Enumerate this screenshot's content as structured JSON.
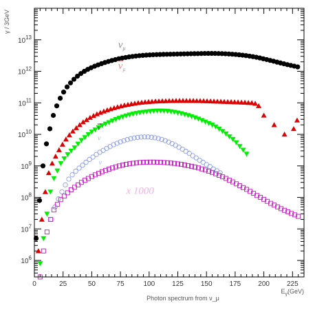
{
  "chart_data": {
    "type": "scatter",
    "title": "",
    "xlabel": "Photon spectrum from ν_μ",
    "xlabel_right": "E_γ(GeV)",
    "ylabel": "γ / 3GeV",
    "xlim": [
      0,
      235
    ],
    "ylim": [
      300000,
      100000000000000
    ],
    "log_y": true,
    "grid": false,
    "x_ticks": [
      0,
      25,
      50,
      75,
      100,
      125,
      150,
      175,
      200,
      225
    ],
    "x_tick_labels": [
      "0",
      "25",
      "50",
      "75",
      "100",
      "125",
      "150",
      "175",
      "200",
      "225"
    ],
    "y_ticks": [
      1000000,
      10000000,
      100000000,
      1000000000,
      10000000000,
      100000000000,
      1000000000000,
      10000000000000
    ],
    "y_tick_labels": [
      {
        "base": "10",
        "exp": "6"
      },
      {
        "base": "10",
        "exp": "7"
      },
      {
        "base": "10",
        "exp": "8"
      },
      {
        "base": "10",
        "exp": "9"
      },
      {
        "base": "10",
        "exp": "10"
      },
      {
        "base": "10",
        "exp": "11"
      },
      {
        "base": "10",
        "exp": "12"
      },
      {
        "base": "10",
        "exp": "13"
      }
    ],
    "annotations": [
      {
        "text": "ν",
        "sub": "μ",
        "x": 73,
        "y": 5500000000000,
        "color": "#888888",
        "size": 15
      },
      {
        "text": "ν",
        "sub": "μ",
        "x": 73,
        "y": 1200000000000,
        "color": "#ee8888",
        "size": 15,
        "overline": true
      },
      {
        "text": "ν",
        "sub": "",
        "x": 55,
        "y": 14000000000,
        "color": "#333333",
        "size": 11,
        "overline": true
      },
      {
        "text": "ν",
        "sub": "",
        "x": 55,
        "y": 6500000000,
        "color": "#aabbee",
        "size": 11
      },
      {
        "text": "ν",
        "sub": "",
        "x": 56,
        "y": 1100000000,
        "color": "#aabbee",
        "size": 11
      },
      {
        "text": "x 1000",
        "sub": "",
        "x": 80,
        "y": 130000000,
        "color": "#f4b0e8",
        "size": 15
      }
    ],
    "series": [
      {
        "name": "",
        "marker": "circle-filled",
        "color": "#000000",
        "x": [
          1.5,
          4.5,
          7.5,
          10.5,
          13.5,
          16.5,
          19.5,
          22.5,
          25.5,
          28.5,
          31.5,
          34.5,
          37.5,
          40.5,
          43.5,
          46.5,
          49.5,
          52.5,
          55.5,
          58.5,
          61.5,
          64.5,
          67.5,
          70.5,
          73.5,
          76.5,
          79.5,
          82.5,
          85.5,
          88.5,
          91.5,
          94.5,
          97.5,
          100.5,
          103.5,
          106.5,
          109.5,
          112.5,
          115.5,
          118.5,
          121.5,
          124.5,
          127.5,
          130.5,
          133.5,
          136.5,
          139.5,
          142.5,
          145.5,
          148.5,
          151.5,
          154.5,
          157.5,
          160.5,
          163.5,
          166.5,
          169.5,
          172.5,
          175.5,
          178.5,
          181.5,
          184.5,
          187.5,
          190.5,
          193.5,
          196.5,
          199.5,
          202.5,
          205.5,
          208.5,
          211.5,
          214.5,
          217.5,
          220.5,
          223.5,
          226.5,
          229.5
        ],
        "y": [
          5000000,
          80000000,
          1000000000,
          5000000000,
          15000000000,
          40000000000,
          80000000000,
          140000000000,
          220000000000,
          320000000000,
          430000000000,
          560000000000,
          700000000000,
          850000000000,
          1000000000000,
          1150000000000,
          1300000000000,
          1450000000000,
          1600000000000,
          1750000000000,
          1900000000000,
          2050000000000,
          2200000000000,
          2350000000000,
          2500000000000,
          2630000000000,
          2750000000000,
          2860000000000,
          2960000000000,
          3050000000000,
          3130000000000,
          3200000000000,
          3260000000000,
          3310000000000,
          3350000000000,
          3390000000000,
          3420000000000,
          3450000000000,
          3470000000000,
          3490000000000,
          3510000000000,
          3530000000000,
          3550000000000,
          3570000000000,
          3590000000000,
          3610000000000,
          3630000000000,
          3650000000000,
          3670000000000,
          3690000000000,
          3700000000000,
          3700000000000,
          3690000000000,
          3670000000000,
          3640000000000,
          3600000000000,
          3550000000000,
          3490000000000,
          3420000000000,
          3340000000000,
          3250000000000,
          3150000000000,
          3040000000000,
          2920000000000,
          2790000000000,
          2650000000000,
          2500000000000,
          2360000000000,
          2220000000000,
          2090000000000,
          1960000000000,
          1840000000000,
          1730000000000,
          1630000000000,
          1540000000000,
          1460000000000,
          1380000000000
        ]
      },
      {
        "name": "",
        "marker": "triangle-up",
        "color": "#dd0000",
        "x": [
          3.5,
          6.5,
          9.5,
          12.5,
          15.5,
          18.5,
          21.5,
          24.5,
          27.5,
          30.5,
          33.5,
          36.5,
          39.5,
          42.5,
          45.5,
          48.5,
          51.5,
          54.5,
          57.5,
          60.5,
          63.5,
          66.5,
          69.5,
          72.5,
          75.5,
          78.5,
          81.5,
          84.5,
          87.5,
          90.5,
          93.5,
          96.5,
          99.5,
          102.5,
          105.5,
          108.5,
          111.5,
          114.5,
          117.5,
          120.5,
          123.5,
          126.5,
          129.5,
          132.5,
          135.5,
          138.5,
          141.5,
          144.5,
          147.5,
          150.5,
          153.5,
          156.5,
          159.5,
          162.5,
          165.5,
          168.5,
          171.5,
          174.5,
          177.5,
          180.5,
          183.5,
          186.5,
          189.5,
          192.5,
          195.5,
          200,
          209,
          218,
          226,
          229
        ],
        "y": [
          2000000,
          20000000,
          150000000,
          600000000,
          1200000000,
          2000000000,
          3200000000,
          4800000000,
          7000000000,
          9500000000,
          12500000000,
          16000000000,
          20000000000,
          24500000000,
          29000000000,
          34000000000,
          39000000000,
          44000000000,
          49000000000,
          54000000000,
          59000000000,
          64000000000,
          69000000000,
          74000000000,
          79000000000,
          84000000000,
          88000000000,
          92000000000,
          96000000000,
          100000000000,
          103000000000,
          106000000000,
          108000000000,
          110000000000,
          112000000000,
          113000000000,
          114000000000,
          115000000000,
          116000000000,
          116000000000,
          117000000000,
          117000000000,
          117000000000,
          117000000000,
          117000000000,
          117000000000,
          116000000000,
          116000000000,
          115000000000,
          114000000000,
          113000000000,
          112000000000,
          111000000000,
          110000000000,
          109000000000,
          108000000000,
          107000000000,
          106000000000,
          105000000000,
          104000000000,
          103000000000,
          101000000000,
          100000000000,
          95000000000,
          80000000000,
          40000000000,
          20000000000,
          10000000000,
          15000000000,
          28000000000
        ]
      },
      {
        "name": "",
        "marker": "triangle-down",
        "color": "#00ee00",
        "x": [
          5,
          8,
          11,
          14,
          17,
          20,
          23,
          26,
          29,
          32,
          35,
          38,
          41,
          44,
          47,
          50,
          53,
          56,
          59,
          62,
          65,
          68,
          71,
          74,
          77,
          80,
          83,
          86,
          89,
          92,
          95,
          98,
          101,
          104,
          107,
          110,
          113,
          116,
          119,
          122,
          125,
          128,
          131,
          134,
          137,
          140,
          143,
          146,
          149,
          152,
          155,
          158,
          161,
          164,
          167,
          170,
          173,
          176,
          179,
          182,
          185
        ],
        "y": [
          800000,
          5000000,
          30000000,
          150000000,
          400000000,
          700000000,
          1200000000,
          1700000000,
          2300000000,
          3000000000,
          3800000000,
          5000000000,
          6500000000,
          8000000000,
          10000000000,
          12000000000,
          14000000000,
          16500000000,
          19000000000,
          21500000000,
          24000000000,
          27000000000,
          30000000000,
          33000000000,
          36000000000,
          39000000000,
          42000000000,
          44500000000,
          47000000000,
          49000000000,
          51000000000,
          52500000000,
          54000000000,
          55000000000,
          56000000000,
          56000000000,
          55500000000,
          54500000000,
          53000000000,
          51000000000,
          48500000000,
          46000000000,
          43000000000,
          40000000000,
          37000000000,
          34000000000,
          31000000000,
          28000000000,
          25000000000,
          22500000000,
          20000000000,
          17500000000,
          15000000000,
          12500000000,
          10500000000,
          8500000000,
          7000000000,
          5500000000,
          4200000000,
          3200000000,
          2400000000
        ]
      },
      {
        "name": "",
        "marker": "circle-open",
        "color": "#8899ee",
        "x": [
          15,
          18,
          21,
          24,
          27,
          30,
          33,
          36,
          39,
          42,
          45,
          48,
          51,
          54,
          57,
          60,
          63,
          66,
          69,
          72,
          75,
          78,
          81,
          84,
          87,
          90,
          93,
          96,
          99,
          102,
          105,
          108,
          111,
          114,
          117,
          120,
          123,
          126,
          129,
          132,
          135,
          138,
          141,
          144,
          147,
          150,
          153,
          156,
          159,
          162
        ],
        "y": [
          20000000,
          50000000,
          90000000,
          150000000,
          250000000,
          380000000,
          520000000,
          680000000,
          850000000,
          1050000000,
          1300000000,
          1600000000,
          1900000000,
          2300000000,
          2700000000,
          3100000000,
          3600000000,
          4100000000,
          4700000000,
          5200000000,
          5800000000,
          6300000000,
          6800000000,
          7300000000,
          7700000000,
          8000000000,
          8200000000,
          8300000000,
          8300000000,
          8100000000,
          7800000000,
          7400000000,
          6900000000,
          6300000000,
          5700000000,
          5100000000,
          4500000000,
          3900000000,
          3400000000,
          2900000000,
          2500000000,
          2100000000,
          1800000000,
          1500000000,
          1300000000,
          1100000000,
          950000000,
          800000000,
          700000000,
          600000000
        ]
      },
      {
        "name": "",
        "marker": "square-open",
        "color": "#cc22cc",
        "x": [
          5,
          8,
          11,
          14,
          17,
          20,
          23,
          26,
          29,
          32,
          35,
          38,
          41,
          44,
          47,
          50,
          53,
          56,
          59,
          62,
          65,
          68,
          71,
          74,
          77,
          80,
          83,
          86,
          89,
          92,
          95,
          98,
          101,
          104,
          107,
          110,
          113,
          116,
          119,
          122,
          125,
          128,
          131,
          134,
          137,
          140,
          143,
          146,
          149,
          152,
          155,
          158,
          161,
          164,
          167,
          170,
          173,
          176,
          179,
          182,
          185,
          188,
          191,
          194,
          197,
          200,
          203,
          206,
          209,
          212,
          215,
          218,
          221,
          224,
          227,
          230
        ],
        "y": [
          300000,
          2000000,
          8000000,
          20000000,
          40000000,
          60000000,
          85000000,
          110000000,
          140000000,
          175000000,
          210000000,
          250000000,
          300000000,
          350000000,
          400000000,
          460000000,
          520000000,
          580000000,
          650000000,
          720000000,
          790000000,
          860000000,
          930000000,
          1000000000,
          1060000000,
          1120000000,
          1170000000,
          1210000000,
          1250000000,
          1280000000,
          1300000000,
          1310000000,
          1320000000,
          1320000000,
          1310000000,
          1300000000,
          1280000000,
          1260000000,
          1230000000,
          1200000000,
          1160000000,
          1120000000,
          1070000000,
          1020000000,
          970000000,
          920000000,
          860000000,
          800000000,
          740000000,
          680000000,
          620000000,
          560000000,
          500000000,
          450000000,
          400000000,
          350000000,
          310000000,
          270000000,
          235000000,
          205000000,
          180000000,
          155000000,
          135000000,
          115000000,
          100000000,
          87000000,
          75000000,
          65000000,
          57000000,
          50000000,
          44000000,
          39000000,
          35000000,
          31000000,
          28000000,
          25000000
        ]
      }
    ]
  }
}
